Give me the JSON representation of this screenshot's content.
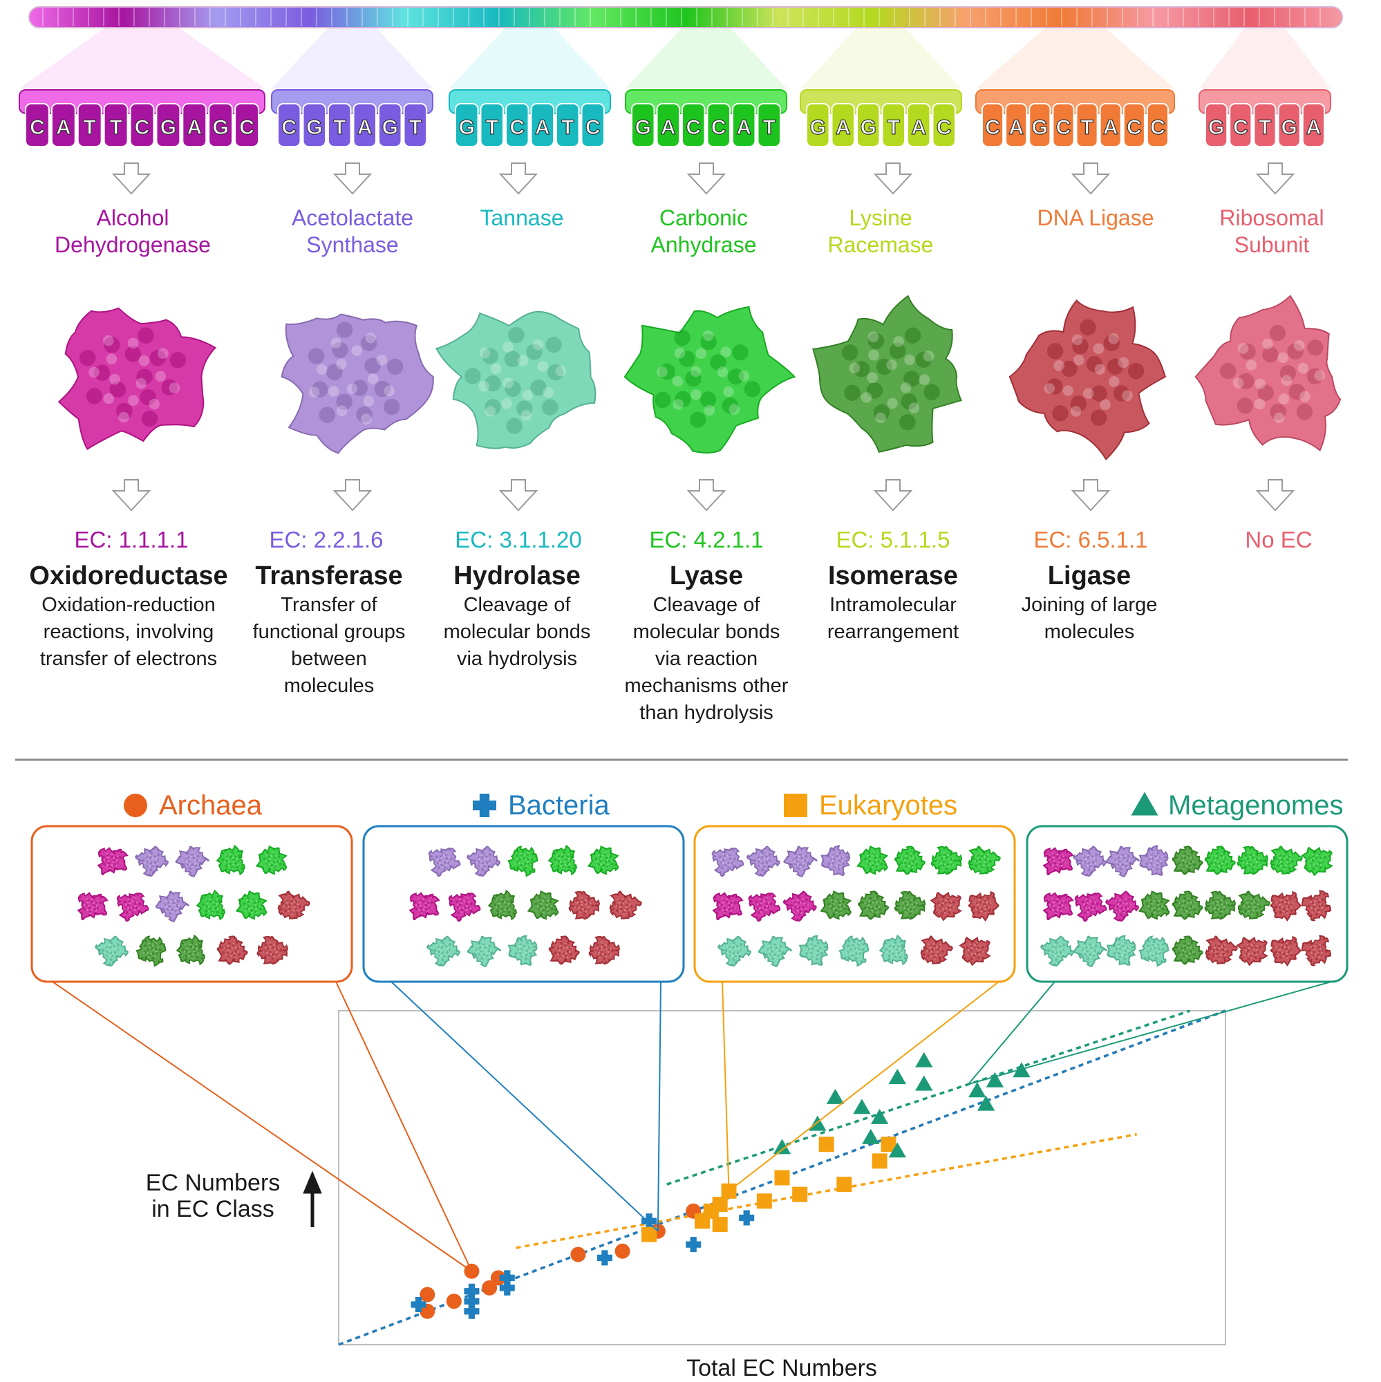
{
  "enzymes": [
    {
      "codons": [
        "C",
        "A",
        "T",
        "T",
        "C",
        "G",
        "A",
        "G",
        "C"
      ],
      "name_lines": [
        "Alcohol",
        "Dehydrogenase"
      ],
      "ec": "EC: 1.1.1.1",
      "class_name": "Oxidoreductase",
      "desc_lines": [
        "Oxidation-reduction",
        "reactions, involving",
        "transfer of electrons"
      ],
      "color": "#a7149f",
      "light": "#ee6ae8",
      "protein": "#d63aa8"
    },
    {
      "codons": [
        "C",
        "G",
        "T",
        "A",
        "G",
        "T"
      ],
      "name_lines": [
        "Acetolactate",
        "Synthase"
      ],
      "ec": "EC: 2.2.1.6",
      "class_name": "Transferase",
      "desc_lines": [
        "Transfer of",
        "functional groups",
        "between",
        "molecules"
      ],
      "color": "#7a5ce0",
      "light": "#a59cf0",
      "protein": "#b093d8"
    },
    {
      "codons": [
        "G",
        "T",
        "C",
        "A",
        "T",
        "C"
      ],
      "name_lines": [
        "Tannase"
      ],
      "ec": "EC: 3.1.1.20",
      "class_name": "Hydrolase",
      "desc_lines": [
        "Cleavage of",
        "molecular bonds",
        "via hydrolysis"
      ],
      "color": "#18b9bf",
      "light": "#5fe3e0",
      "protein": "#7ed9b8"
    },
    {
      "codons": [
        "G",
        "A",
        "C",
        "C",
        "A",
        "T"
      ],
      "name_lines": [
        "Carbonic",
        "Anhydrase"
      ],
      "ec": "EC: 4.2.1.1",
      "class_name": "Lyase",
      "desc_lines": [
        "Cleavage of",
        "molecular bonds",
        "via reaction",
        "mechanisms other",
        "than hydrolysis"
      ],
      "color": "#1ec41e",
      "light": "#63e863",
      "protein": "#3fd24a"
    },
    {
      "codons": [
        "G",
        "A",
        "G",
        "T",
        "A",
        "C"
      ],
      "name_lines": [
        "Lysine",
        "Racemase"
      ],
      "ec": "EC: 5.1.1.5",
      "class_name": "Isomerase",
      "desc_lines": [
        "Intramolecular",
        "rearrangement"
      ],
      "color": "#b4d91f",
      "light": "#cde35a",
      "protein": "#5ba84c"
    },
    {
      "codons": [
        "C",
        "A",
        "G",
        "C",
        "T",
        "A",
        "C",
        "C"
      ],
      "name_lines": [
        "DNA Ligase"
      ],
      "ec": "EC: 6.5.1.1",
      "class_name": "Ligase",
      "desc_lines": [
        "Joining of large",
        "molecules"
      ],
      "color": "#f07a36",
      "light": "#f7a06e",
      "protein": "#c9575f"
    },
    {
      "codons": [
        "G",
        "C",
        "T",
        "G",
        "A"
      ],
      "name_lines": [
        "Ribosomal",
        "Subunit"
      ],
      "ec": "No EC",
      "class_name": "",
      "desc_lines": [],
      "color": "#e85f6e",
      "light": "#f59aa3",
      "protein": "#e3718a"
    }
  ],
  "groups": [
    {
      "name": "Archaea",
      "color": "#e8601c",
      "marker": "circle",
      "rows": [
        [
          0,
          1,
          1,
          3,
          3
        ],
        [
          0,
          0,
          1,
          3,
          3,
          5
        ],
        [
          2,
          4,
          4,
          5,
          5
        ]
      ]
    },
    {
      "name": "Bacteria",
      "color": "#1f7fbf",
      "marker": "plus",
      "rows": [
        [
          1,
          1,
          3,
          3,
          3
        ],
        [
          0,
          0,
          4,
          4,
          5,
          5
        ],
        [
          2,
          2,
          2,
          5,
          5
        ]
      ]
    },
    {
      "name": "Eukaryotes",
      "color": "#f5a10f",
      "marker": "square",
      "rows": [
        [
          1,
          1,
          1,
          1,
          3,
          3,
          3,
          3
        ],
        [
          0,
          0,
          0,
          4,
          4,
          4,
          5,
          5
        ],
        [
          2,
          2,
          2,
          2,
          2,
          5,
          5
        ]
      ]
    },
    {
      "name": "Metagenomes",
      "color": "#1c9a78",
      "marker": "triangle",
      "rows": [
        [
          0,
          1,
          1,
          1,
          4,
          3,
          3,
          3,
          3
        ],
        [
          0,
          0,
          0,
          4,
          4,
          4,
          4,
          5,
          5
        ],
        [
          2,
          2,
          2,
          2,
          4,
          5,
          5,
          5,
          5
        ]
      ]
    }
  ],
  "axis": {
    "ylabel_lines": [
      "EC Numbers",
      "in EC Class"
    ],
    "xlabel": "Total EC Numbers"
  },
  "chart_data": {
    "type": "scatter",
    "xlabel": "Total EC Numbers",
    "ylabel": "EC Numbers in EC Class",
    "xlim": [
      0,
      100
    ],
    "ylim": [
      0,
      100
    ],
    "series": [
      {
        "name": "Archaea",
        "points": [
          [
            10,
            15
          ],
          [
            10,
            10
          ],
          [
            13,
            13
          ],
          [
            15,
            22
          ],
          [
            17,
            17
          ],
          [
            18,
            20
          ],
          [
            27,
            27
          ],
          [
            32,
            28
          ],
          [
            36,
            34
          ],
          [
            40,
            40
          ]
        ],
        "trend": [
          [
            0,
            0
          ],
          [
            100,
            100
          ]
        ]
      },
      {
        "name": "Bacteria",
        "points": [
          [
            9,
            12
          ],
          [
            15,
            16
          ],
          [
            15,
            13
          ],
          [
            15,
            10
          ],
          [
            19,
            17
          ],
          [
            19,
            20
          ],
          [
            30,
            26
          ],
          [
            35,
            37
          ],
          [
            40,
            30
          ],
          [
            46,
            38
          ]
        ],
        "trend": [
          [
            0,
            0
          ],
          [
            100,
            100
          ]
        ]
      },
      {
        "name": "Eukaryotes",
        "points": [
          [
            35,
            33
          ],
          [
            41,
            37
          ],
          [
            42,
            40
          ],
          [
            43,
            42
          ],
          [
            43,
            36
          ],
          [
            44,
            46
          ],
          [
            48,
            43
          ],
          [
            50,
            50
          ],
          [
            52,
            45
          ],
          [
            55,
            60
          ],
          [
            57,
            48
          ],
          [
            61,
            55
          ],
          [
            62,
            60
          ]
        ],
        "trend": [
          [
            20,
            29
          ],
          [
            90,
            63
          ]
        ]
      },
      {
        "name": "Metagenomes",
        "points": [
          [
            50,
            59
          ],
          [
            54,
            66
          ],
          [
            56,
            74
          ],
          [
            59,
            71
          ],
          [
            60,
            62
          ],
          [
            61,
            68
          ],
          [
            63,
            80
          ],
          [
            63,
            58
          ],
          [
            66,
            78
          ],
          [
            66,
            85
          ],
          [
            72,
            76
          ],
          [
            73,
            72
          ],
          [
            74,
            79
          ],
          [
            77,
            82
          ]
        ],
        "trend": [
          [
            37,
            48
          ],
          [
            96,
            100
          ]
        ]
      }
    ]
  }
}
